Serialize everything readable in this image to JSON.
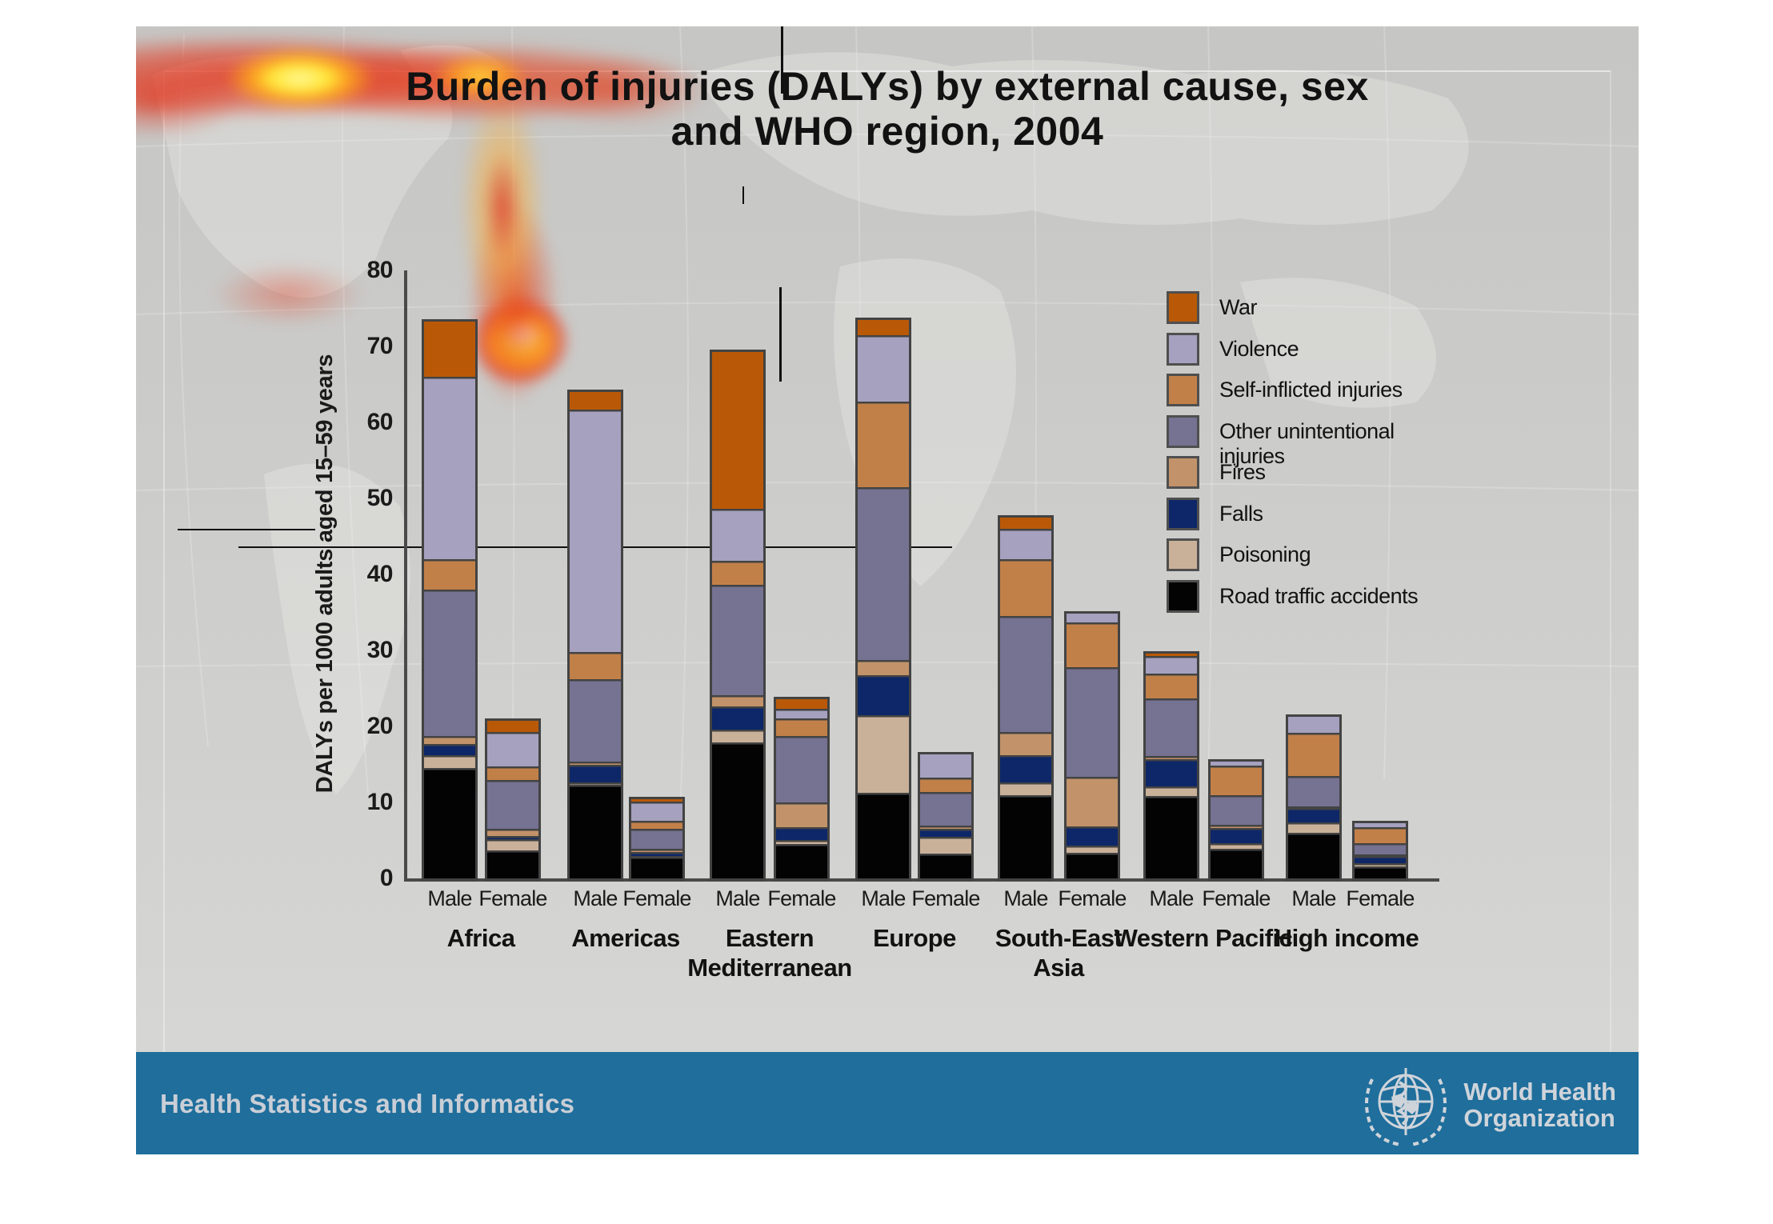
{
  "slide": {
    "title_line1": "Burden of injuries (DALYs) by external cause, sex",
    "title_line2": "and WHO region, 2004",
    "footer": {
      "department": "Health Statistics and Informatics",
      "who_name_line1": "World Health",
      "who_name_line2": "Organization"
    }
  },
  "chart_data": {
    "type": "bar",
    "stacked": true,
    "title": "Burden of injuries (DALYs) by external cause, sex and WHO region, 2004",
    "xlabel": "",
    "ylabel": "DALYs per 1000 adults aged 15–59 years",
    "ylim": [
      0,
      80
    ],
    "yticks": [
      0,
      10,
      20,
      30,
      40,
      50,
      60,
      70,
      80
    ],
    "grid": false,
    "legend_position": "upper right",
    "sex_labels": [
      "Male",
      "Female"
    ],
    "stack_order_bottom_to_top": [
      "road_traffic",
      "poisoning",
      "falls",
      "fires",
      "other_unintentional",
      "self_inflicted",
      "violence",
      "war"
    ],
    "legend": [
      {
        "key": "war",
        "label": "War"
      },
      {
        "key": "violence",
        "label": "Violence"
      },
      {
        "key": "self_inflicted",
        "label": "Self-inflicted injuries"
      },
      {
        "key": "other_unintentional",
        "label": "Other unintentional injuries"
      },
      {
        "key": "fires",
        "label": "Fires"
      },
      {
        "key": "falls",
        "label": "Falls"
      },
      {
        "key": "poisoning",
        "label": "Poisoning"
      },
      {
        "key": "road_traffic",
        "label": "Road traffic accidents"
      }
    ],
    "colors": {
      "war": "#B95908",
      "violence": "#A5A1BE",
      "self_inflicted": "#C28049",
      "other_unintentional": "#757292",
      "fires": "#C2936A",
      "falls": "#0D2768",
      "poisoning": "#C9B199",
      "road_traffic": "#030303"
    },
    "regions": [
      {
        "id": "africa",
        "label_lines": [
          "Africa"
        ]
      },
      {
        "id": "americas",
        "label_lines": [
          "Americas"
        ]
      },
      {
        "id": "eastern-mediterranean",
        "label_lines": [
          "Eastern",
          "Mediterranean"
        ]
      },
      {
        "id": "europe",
        "label_lines": [
          "Europe"
        ]
      },
      {
        "id": "south-east-asia",
        "label_lines": [
          "South-East",
          "Asia"
        ]
      },
      {
        "id": "western-pacific",
        "label_lines": [
          "Western Pacific"
        ]
      },
      {
        "id": "high-income",
        "label_lines": [
          "High income"
        ]
      }
    ],
    "bars": [
      {
        "region": "africa",
        "sex": "Male",
        "total": 73.3,
        "values": {
          "road_traffic": 14.5,
          "poisoning": 1.7,
          "falls": 1.5,
          "fires": 1.0,
          "other_unintentional": 19.3,
          "self_inflicted": 4.0,
          "violence": 24.0,
          "war": 7.3
        }
      },
      {
        "region": "africa",
        "sex": "Female",
        "total": 20.7,
        "values": {
          "road_traffic": 3.7,
          "poisoning": 1.5,
          "falls": 0.4,
          "fires": 0.9,
          "other_unintentional": 6.5,
          "self_inflicted": 1.7,
          "violence": 4.6,
          "war": 1.4
        }
      },
      {
        "region": "americas",
        "sex": "Male",
        "total": 64.0,
        "values": {
          "road_traffic": 12.3,
          "poisoning": 0.3,
          "falls": 2.4,
          "fires": 0.4,
          "other_unintentional": 10.8,
          "self_inflicted": 3.6,
          "violence": 31.9,
          "war": 2.3
        }
      },
      {
        "region": "americas",
        "sex": "Female",
        "total": 10.4,
        "values": {
          "road_traffic": 2.8,
          "poisoning": 0.2,
          "falls": 0.5,
          "fires": 0.4,
          "other_unintentional": 2.6,
          "self_inflicted": 1.1,
          "violence": 2.5,
          "war": 0.3
        }
      },
      {
        "region": "eastern-mediterranean",
        "sex": "Male",
        "total": 69.3,
        "values": {
          "road_traffic": 17.9,
          "poisoning": 1.7,
          "falls": 3.0,
          "fires": 1.5,
          "other_unintentional": 14.5,
          "self_inflicted": 3.2,
          "violence": 6.8,
          "war": 20.7
        }
      },
      {
        "region": "eastern-mediterranean",
        "sex": "Female",
        "total": 23.6,
        "values": {
          "road_traffic": 4.5,
          "poisoning": 0.6,
          "falls": 1.6,
          "fires": 3.3,
          "other_unintentional": 8.7,
          "self_inflicted": 2.4,
          "violence": 1.2,
          "war": 1.3
        }
      },
      {
        "region": "europe",
        "sex": "Male",
        "total": 73.5,
        "values": {
          "road_traffic": 11.3,
          "poisoning": 10.2,
          "falls": 5.2,
          "fires": 2.0,
          "other_unintentional": 22.8,
          "self_inflicted": 11.2,
          "violence": 8.8,
          "war": 2.0
        }
      },
      {
        "region": "europe",
        "sex": "Female",
        "total": 16.3,
        "values": {
          "road_traffic": 3.3,
          "poisoning": 2.2,
          "falls": 1.0,
          "fires": 0.4,
          "other_unintentional": 4.5,
          "self_inflicted": 1.9,
          "violence": 3.0,
          "war": 0
        }
      },
      {
        "region": "south-east-asia",
        "sex": "Male",
        "total": 47.5,
        "values": {
          "road_traffic": 11.0,
          "poisoning": 1.6,
          "falls": 3.6,
          "fires": 3.1,
          "other_unintentional": 15.2,
          "self_inflicted": 7.5,
          "violence": 4.0,
          "war": 1.5
        }
      },
      {
        "region": "south-east-asia",
        "sex": "Female",
        "total": 34.8,
        "values": {
          "road_traffic": 3.4,
          "poisoning": 0.9,
          "falls": 2.5,
          "fires": 6.6,
          "other_unintentional": 14.4,
          "self_inflicted": 5.9,
          "violence": 1.1,
          "war": 0
        }
      },
      {
        "region": "western-pacific",
        "sex": "Male",
        "total": 29.6,
        "values": {
          "road_traffic": 10.8,
          "poisoning": 1.3,
          "falls": 3.6,
          "fires": 0.4,
          "other_unintentional": 7.6,
          "self_inflicted": 3.2,
          "violence": 2.4,
          "war": 0.3
        }
      },
      {
        "region": "western-pacific",
        "sex": "Female",
        "total": 15.4,
        "values": {
          "road_traffic": 3.9,
          "poisoning": 0.7,
          "falls": 2.0,
          "fires": 0.5,
          "other_unintentional": 3.9,
          "self_inflicted": 3.8,
          "violence": 0.6,
          "war": 0
        }
      },
      {
        "region": "high-income",
        "sex": "Male",
        "total": 21.3,
        "values": {
          "road_traffic": 6.0,
          "poisoning": 1.4,
          "falls": 1.9,
          "fires": 0.2,
          "other_unintentional": 4.0,
          "self_inflicted": 5.7,
          "violence": 2.1,
          "war": 0
        }
      },
      {
        "region": "high-income",
        "sex": "Female",
        "total": 7.3,
        "values": {
          "road_traffic": 1.6,
          "poisoning": 0.4,
          "falls": 1.0,
          "fires": 0.2,
          "other_unintentional": 1.4,
          "self_inflicted": 2.1,
          "violence": 0.6,
          "war": 0
        }
      }
    ]
  }
}
